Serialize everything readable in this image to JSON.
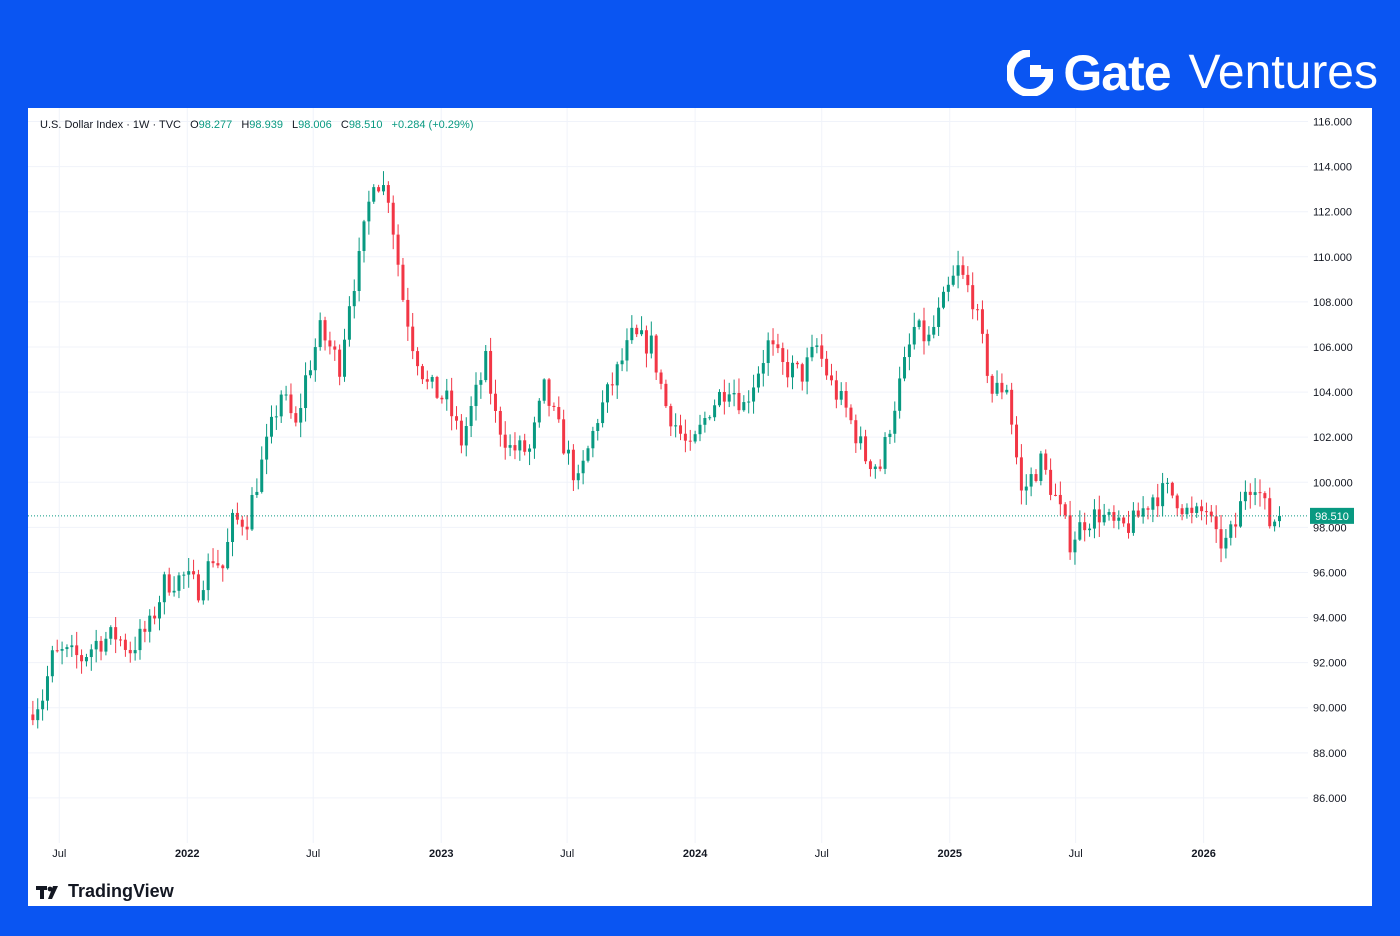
{
  "brand": {
    "name": "Gate",
    "sub": "Ventures",
    "icon": "gate-logo-icon"
  },
  "legend": {
    "symbol": "U.S. Dollar Index · 1W · TVC",
    "o_label": "O",
    "o": "98.277",
    "h_label": "H",
    "h": "98.939",
    "l_label": "L",
    "l": "98.006",
    "c_label": "C",
    "c": "98.510",
    "change": "+0.284 (+0.29%)"
  },
  "footer": {
    "logo_text": "TradingView",
    "icon": "tradingview-logo-icon"
  },
  "colors": {
    "up": "#089981",
    "down": "#f23645",
    "accent": "#0a55f2"
  },
  "chart_data": {
    "type": "candlestick",
    "title": "U.S. Dollar Index · 1W · TVC",
    "ylim": [
      84,
      116.6
    ],
    "y_ticks": [
      "86.000",
      "88.000",
      "90.000",
      "92.000",
      "94.000",
      "96.000",
      "98.000",
      "100.000",
      "102.000",
      "104.000",
      "106.000",
      "108.000",
      "110.000",
      "112.000",
      "114.000",
      "116.000"
    ],
    "x_ticks": [
      {
        "date": "2021-07-01",
        "label": "Jul"
      },
      {
        "date": "2022-01-01",
        "label": "2022"
      },
      {
        "date": "2022-07-01",
        "label": "Jul"
      },
      {
        "date": "2023-01-01",
        "label": "2023"
      },
      {
        "date": "2023-07-01",
        "label": "Jul"
      },
      {
        "date": "2024-01-01",
        "label": "2024"
      },
      {
        "date": "2024-07-01",
        "label": "Jul"
      },
      {
        "date": "2025-01-01",
        "label": "2025"
      },
      {
        "date": "2025-07-01",
        "label": "Jul"
      },
      {
        "date": "2026-01-01",
        "label": "2026"
      }
    ],
    "xlim": [
      "2021-05-17",
      "2026-05-31"
    ],
    "last_price": 98.51,
    "last_price_label": "98.510",
    "grid": true,
    "path": [
      [
        "2021-05-24",
        90.0
      ],
      [
        "2021-06-07",
        90.5
      ],
      [
        "2021-06-21",
        92.2
      ],
      [
        "2021-07-05",
        92.4
      ],
      [
        "2021-08-02",
        92.2
      ],
      [
        "2021-08-23",
        92.9
      ],
      [
        "2021-09-20",
        93.2
      ],
      [
        "2021-10-11",
        92.6
      ],
      [
        "2021-11-08",
        93.6
      ],
      [
        "2021-11-29",
        95.5
      ],
      [
        "2021-12-27",
        95.8
      ],
      [
        "2022-01-17",
        95.3
      ],
      [
        "2022-02-07",
        96.7
      ],
      [
        "2022-02-21",
        96.2
      ],
      [
        "2022-03-07",
        98.2
      ],
      [
        "2022-03-28",
        98.4
      ],
      [
        "2022-04-25",
        101.6
      ],
      [
        "2022-05-16",
        104.0
      ],
      [
        "2022-06-06",
        102.4
      ],
      [
        "2022-06-20",
        104.6
      ],
      [
        "2022-07-11",
        106.7
      ],
      [
        "2022-07-25",
        106.0
      ],
      [
        "2022-08-08",
        105.2
      ],
      [
        "2022-08-22",
        108.1
      ],
      [
        "2022-09-05",
        109.8
      ],
      [
        "2022-09-26",
        113.6
      ],
      [
        "2022-10-17",
        112.8
      ],
      [
        "2022-11-07",
        108.2
      ],
      [
        "2022-11-21",
        106.2
      ],
      [
        "2022-12-12",
        104.3
      ],
      [
        "2023-01-09",
        103.6
      ],
      [
        "2023-01-30",
        101.8
      ],
      [
        "2023-03-06",
        105.3
      ],
      [
        "2023-03-20",
        102.9
      ],
      [
        "2023-04-10",
        101.5
      ],
      [
        "2023-05-08",
        101.4
      ],
      [
        "2023-05-29",
        104.1
      ],
      [
        "2023-06-19",
        102.3
      ],
      [
        "2023-07-17",
        99.9
      ],
      [
        "2023-08-14",
        102.9
      ],
      [
        "2023-09-11",
        104.9
      ],
      [
        "2023-10-02",
        106.4
      ],
      [
        "2023-10-30",
        106.1
      ],
      [
        "2023-11-20",
        103.4
      ],
      [
        "2023-12-25",
        101.3
      ],
      [
        "2024-01-22",
        103.3
      ],
      [
        "2024-02-19",
        104.4
      ],
      [
        "2024-03-11",
        103.4
      ],
      [
        "2024-04-15",
        106.1
      ],
      [
        "2024-05-06",
        105.1
      ],
      [
        "2024-06-03",
        104.8
      ],
      [
        "2024-06-24",
        106.0
      ],
      [
        "2024-07-15",
        104.3
      ],
      [
        "2024-08-05",
        103.2
      ],
      [
        "2024-09-02",
        101.1
      ],
      [
        "2024-09-23",
        100.7
      ],
      [
        "2024-10-14",
        103.5
      ],
      [
        "2024-11-11",
        106.8
      ],
      [
        "2024-12-02",
        106.3
      ],
      [
        "2024-12-30",
        108.5
      ],
      [
        "2025-01-13",
        109.4
      ],
      [
        "2025-02-03",
        108.2
      ],
      [
        "2025-03-03",
        104.0
      ],
      [
        "2025-03-24",
        104.3
      ],
      [
        "2025-04-14",
        99.5
      ],
      [
        "2025-05-12",
        100.9
      ],
      [
        "2025-06-02",
        99.3
      ],
      [
        "2025-06-23",
        97.4
      ],
      [
        "2025-07-14",
        98.3
      ],
      [
        "2025-08-04",
        98.6
      ],
      [
        "2025-09-01",
        97.9
      ],
      [
        "2025-09-22",
        98.2
      ],
      [
        "2025-10-20",
        99.4
      ],
      [
        "2025-11-10",
        99.6
      ],
      [
        "2025-11-24",
        99.3
      ],
      [
        "2025-12-15",
        98.4
      ],
      [
        "2026-01-05",
        98.8
      ],
      [
        "2026-01-19",
        97.4
      ],
      [
        "2026-02-02",
        97.3
      ],
      [
        "2026-02-16",
        98.1
      ],
      [
        "2026-03-02",
        99.8
      ],
      [
        "2026-03-16",
        100.1
      ],
      [
        "2026-04-06",
        98.2
      ],
      [
        "2026-04-20",
        98.5
      ]
    ]
  }
}
